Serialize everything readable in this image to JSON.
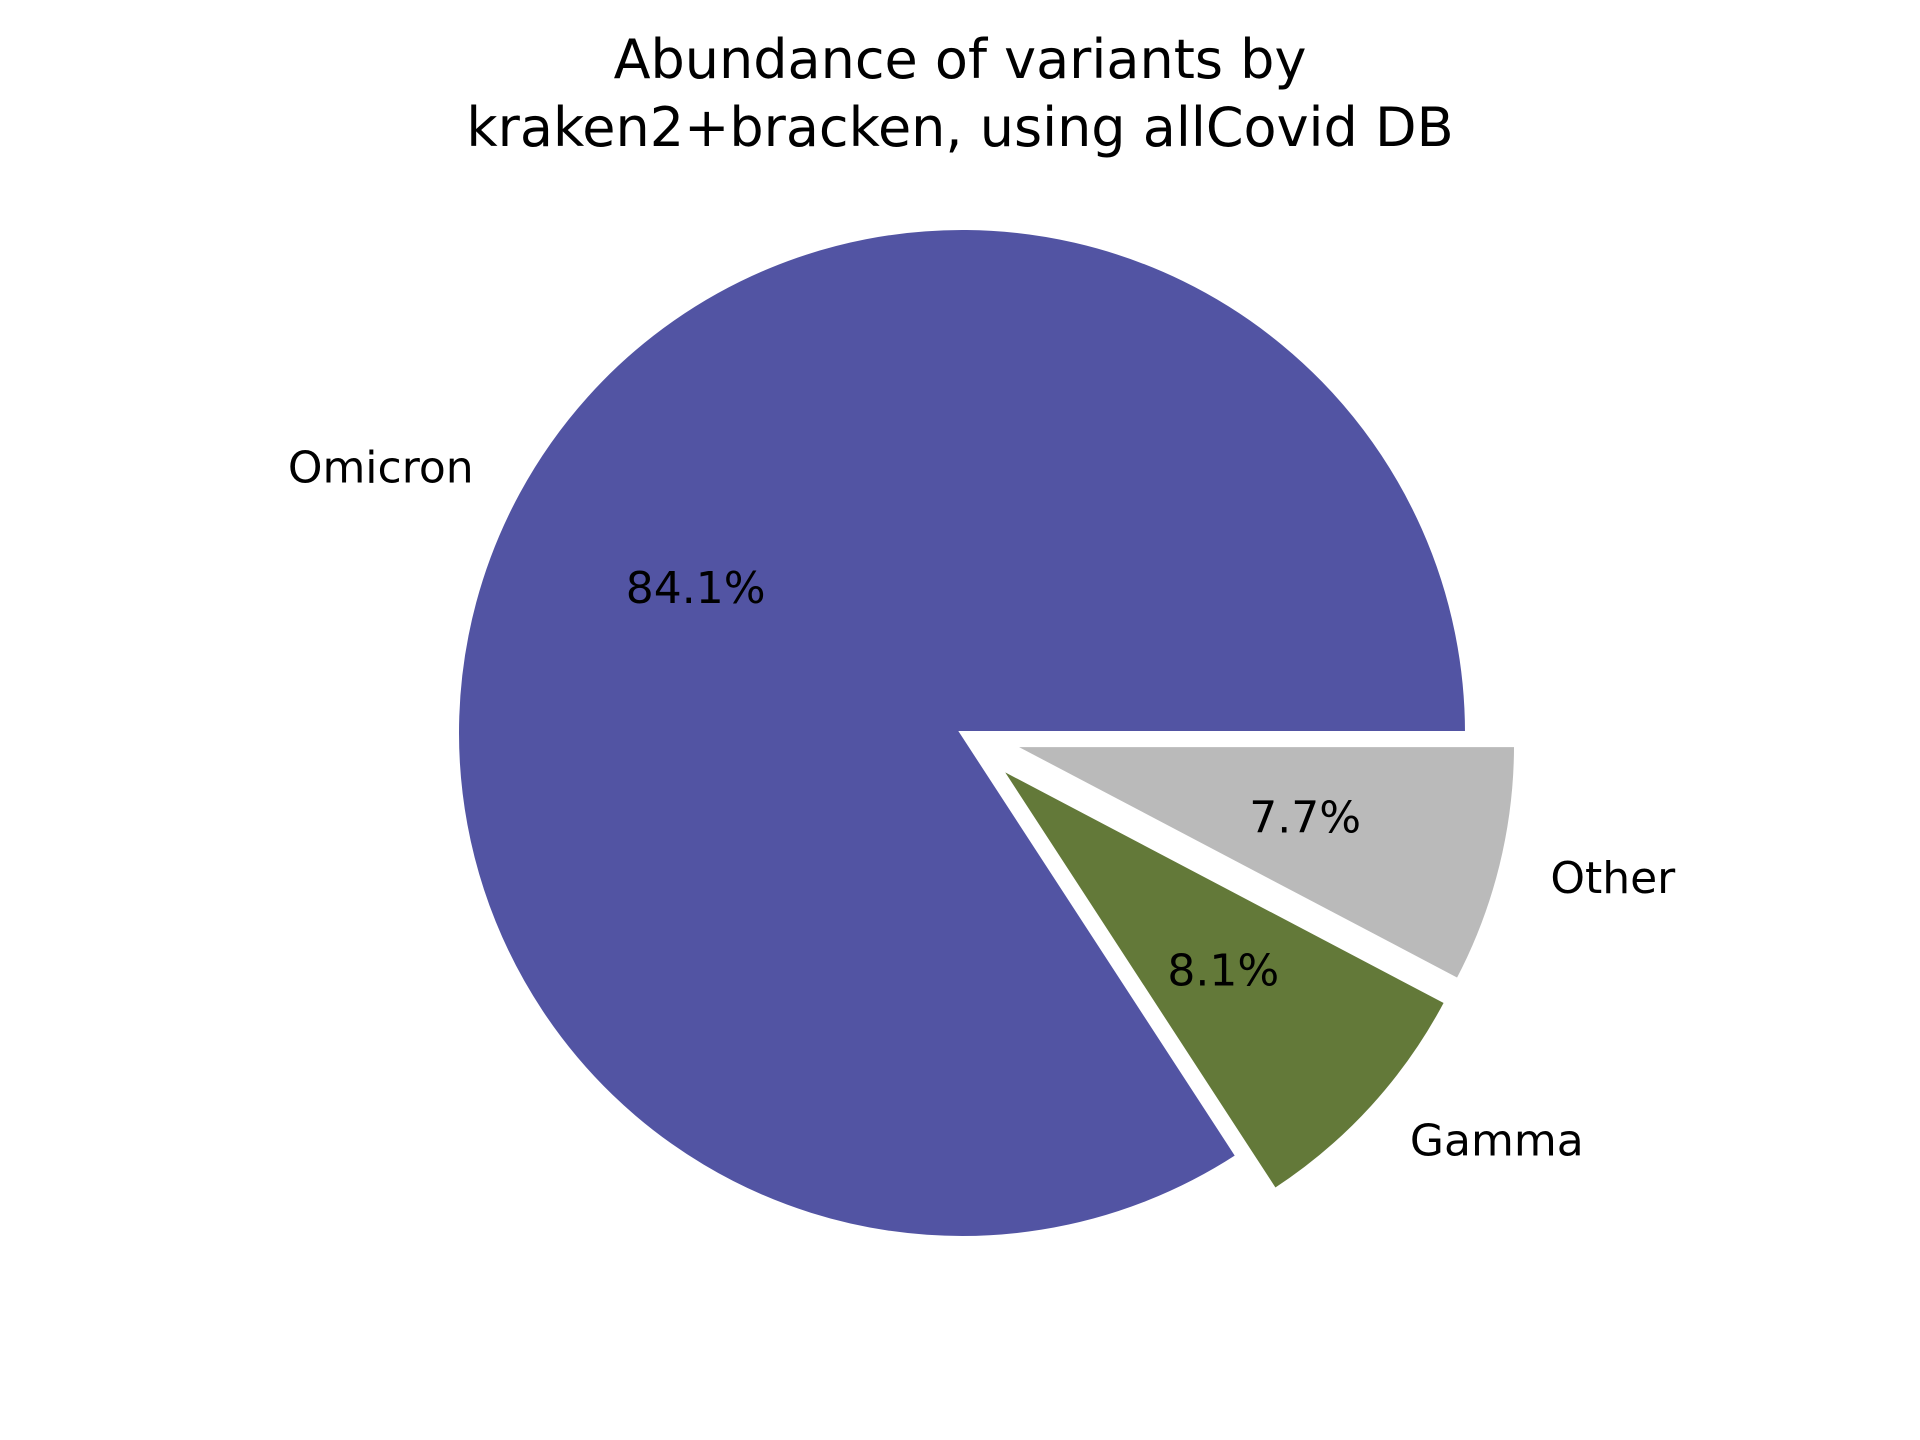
{
  "chart_data": {
    "type": "pie",
    "title_lines": [
      "Abundance of variants by",
      "kraken2+bracken, using allCovid DB"
    ],
    "slices": [
      {
        "label": "Omicron",
        "percent_label": "84.1%",
        "value": 84.1,
        "color": "#5254a3",
        "exploded": false
      },
      {
        "label": "Gamma",
        "percent_label": "8.1%",
        "value": 8.1,
        "color": "#637939",
        "exploded": true
      },
      {
        "label": "Other",
        "percent_label": "7.7%",
        "value": 7.7,
        "color": "#bababa",
        "exploded": true
      }
    ],
    "start_angle_deg": 0,
    "direction": "counterclockwise",
    "edge_color": "#ffffff"
  }
}
